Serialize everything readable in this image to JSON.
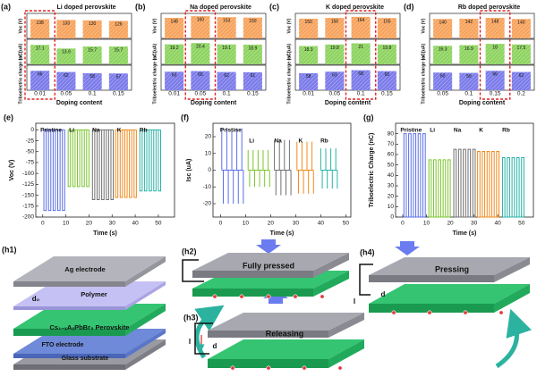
{
  "chart_data": [
    {
      "type": "bar-stack3",
      "label": "(a)",
      "title": "Li doped perovskite",
      "xlabel": "Doping content",
      "categories": [
        "0.01",
        "0.05",
        "0.1",
        "0.15"
      ],
      "highlight": 0,
      "series": [
        {
          "name": "Voc (V)",
          "color": "#f7a35c",
          "values": [
            138,
            133,
            130,
            126
          ],
          "ylim": [
            0,
            180
          ]
        },
        {
          "name": "Isc (uA)",
          "color": "#8dd35f",
          "values": [
            17.1,
            13.9,
            15.7,
            15.7
          ],
          "ylim": [
            0,
            22
          ]
        },
        {
          "name": "Triboelectric charge (nC)",
          "color": "#7b7bea",
          "values": [
            66,
            62,
            58,
            57
          ],
          "ylim": [
            0,
            85
          ]
        }
      ]
    },
    {
      "type": "bar-stack3",
      "label": "(b)",
      "title": "Na doped perovskite",
      "xlabel": "Doping content",
      "categories": [
        "0.01",
        "0.05",
        "0.1",
        "0.15"
      ],
      "highlight": 1,
      "series": [
        {
          "name": "Voc (V)",
          "color": "#f7a35c",
          "values": [
            148,
            160,
            153,
            150
          ],
          "ylim": [
            0,
            180
          ]
        },
        {
          "name": "Isc (uA)",
          "color": "#8dd35f",
          "values": [
            19.2,
            20.4,
            19.1,
            18.9
          ],
          "ylim": [
            0,
            24
          ]
        },
        {
          "name": "Triboelectric charge (nC)",
          "color": "#7b7bea",
          "values": [
            63,
            65,
            62,
            61
          ],
          "ylim": [
            0,
            85
          ]
        }
      ]
    },
    {
      "type": "bar-stack3",
      "label": "(c)",
      "title": "K doped perovskite",
      "xlabel": "Doping content",
      "categories": [
        "0.01",
        "0.05",
        "0.1",
        "0.15"
      ],
      "highlight": 2,
      "series": [
        {
          "name": "Voc (V)",
          "color": "#f7a35c",
          "values": [
            150,
            156,
            164,
            155
          ],
          "ylim": [
            0,
            190
          ]
        },
        {
          "name": "Isc (uA)",
          "color": "#8dd35f",
          "values": [
            18.3,
            19.8,
            21,
            19.8
          ],
          "ylim": [
            0,
            25
          ]
        },
        {
          "name": "Triboelectric charge (nC)",
          "color": "#7b7bea",
          "values": [
            58,
            63,
            68,
            65
          ],
          "ylim": [
            0,
            85
          ]
        }
      ]
    },
    {
      "type": "bar-stack3",
      "label": "(d)",
      "title": "Rb doped perovskite",
      "xlabel": "Doping content",
      "categories": [
        "0.05",
        "0.1",
        "0.15",
        "0.2"
      ],
      "highlight": 2,
      "series": [
        {
          "name": "Voc (V)",
          "color": "#f7a35c",
          "values": [
            140,
            142,
            148,
            140
          ],
          "ylim": [
            0,
            180
          ]
        },
        {
          "name": "Isc (uA)",
          "color": "#8dd35f",
          "values": [
            16.3,
            16.9,
            18,
            17.5
          ],
          "ylim": [
            0,
            22
          ]
        },
        {
          "name": "Triboelectric charge (nC)",
          "color": "#7b7bea",
          "values": [
            60,
            59,
            66,
            62
          ],
          "ylim": [
            0,
            85
          ]
        }
      ]
    },
    {
      "type": "pulse",
      "label": "(e)",
      "xlabel": "Time (s)",
      "ylabel": "Voc (V)",
      "xlim": [
        -3,
        57
      ],
      "ylim": [
        -200,
        15
      ],
      "xticks": [
        0,
        10,
        20,
        30,
        40,
        50
      ],
      "yticks": [
        0,
        -25,
        -50,
        -75,
        -100,
        -125,
        -150,
        -175,
        -200
      ],
      "pulse_width": 1,
      "series": [
        {
          "name": "Pristine",
          "color": "#5a6fe8",
          "x": [
            0.5,
            2.5,
            4.5,
            6.5,
            8.5
          ],
          "values": [
            -185,
            -185,
            -185,
            -185,
            -185
          ]
        },
        {
          "name": "Li",
          "color": "#7cc62e",
          "x": [
            11,
            13,
            15,
            17,
            19
          ],
          "values": [
            -130,
            -130,
            -130,
            -130,
            -130
          ]
        },
        {
          "name": "Na",
          "color": "#707070",
          "x": [
            21.5,
            23.5,
            25.5,
            27.5,
            29.5
          ],
          "values": [
            -160,
            -160,
            -160,
            -160,
            -160
          ]
        },
        {
          "name": "K",
          "color": "#f08a1c",
          "x": [
            31.5,
            33.5,
            35.5,
            37.5,
            39.5
          ],
          "values": [
            -155,
            -155,
            -155,
            -155,
            -155
          ]
        },
        {
          "name": "Rb",
          "color": "#28b3a8",
          "x": [
            42,
            44,
            46,
            48,
            50
          ],
          "values": [
            -140,
            -140,
            -140,
            -140,
            -140
          ]
        }
      ]
    },
    {
      "type": "spike",
      "label": "(f)",
      "xlabel": "Time (s)",
      "ylabel": "Isc (uA)",
      "xlim": [
        -3,
        52
      ],
      "ylim": [
        -28,
        28
      ],
      "xticks": [
        0,
        10,
        20,
        30,
        40,
        50
      ],
      "yticks": [
        -20,
        -10,
        0,
        10,
        20
      ],
      "pulse_width": 0.6,
      "series": [
        {
          "name": "Pristine",
          "color": "#5a6fe8",
          "x": [
            0.5,
            2.5,
            4.5,
            6.5,
            8.5
          ],
          "values": [
            25,
            25,
            25,
            25,
            25
          ],
          "min_values": [
            -20,
            -20,
            -20,
            -20,
            -20
          ]
        },
        {
          "name": "Li",
          "color": "#7cc62e",
          "x": [
            11,
            13,
            15,
            17,
            19
          ],
          "values": [
            12,
            12,
            12,
            12,
            12
          ],
          "min_values": [
            -10,
            -10,
            -10,
            -10,
            -10
          ]
        },
        {
          "name": "Na",
          "color": "#707070",
          "x": [
            21.5,
            23.5,
            25.5,
            27.5
          ],
          "values": [
            18,
            18,
            18,
            18
          ],
          "min_values": [
            -15,
            -15,
            -15,
            -15
          ]
        },
        {
          "name": "K",
          "color": "#f08a1c",
          "x": [
            30.5,
            32.5,
            34.5,
            36.5
          ],
          "values": [
            17,
            17,
            17,
            17
          ],
          "min_values": [
            -14,
            -14,
            -14,
            -14
          ]
        },
        {
          "name": "Rb",
          "color": "#28b3a8",
          "x": [
            40,
            42,
            44,
            46
          ],
          "values": [
            13,
            13,
            13,
            13
          ],
          "min_values": [
            -11,
            -11,
            -11,
            -11
          ]
        }
      ]
    },
    {
      "type": "pulse",
      "label": "(g)",
      "xlabel": "Time (s)",
      "ylabel": "Triboelectric Charge (nC)",
      "xlim": [
        -3,
        55
      ],
      "ylim": [
        0,
        90
      ],
      "xticks": [
        0,
        10,
        20,
        30,
        40,
        50
      ],
      "yticks": [
        0,
        10,
        20,
        30,
        40,
        50,
        60,
        70,
        80
      ],
      "pulse_width": 1,
      "series": [
        {
          "name": "Pristine",
          "color": "#5a6fe8",
          "x": [
            0.5,
            2.5,
            4.5,
            6.5,
            8.5
          ],
          "values": [
            80,
            80,
            80,
            80,
            80
          ]
        },
        {
          "name": "Li",
          "color": "#7cc62e",
          "x": [
            11,
            13,
            15,
            17,
            19
          ],
          "values": [
            55,
            55,
            55,
            55,
            55
          ]
        },
        {
          "name": "Na",
          "color": "#707070",
          "x": [
            21.5,
            23.5,
            25.5,
            27.5,
            29.5
          ],
          "values": [
            65,
            65,
            65,
            65,
            65
          ]
        },
        {
          "name": "K",
          "color": "#f08a1c",
          "x": [
            31.5,
            33.5,
            35.5,
            37.5,
            39.5
          ],
          "values": [
            63,
            63,
            63,
            63,
            63
          ]
        },
        {
          "name": "Rb",
          "color": "#28b3a8",
          "x": [
            42,
            44,
            46,
            48,
            50
          ],
          "values": [
            57,
            57,
            57,
            57,
            57
          ]
        }
      ]
    }
  ],
  "diagram": {
    "h1": {
      "label": "(h1)",
      "top": "Ag electrode",
      "polymer": "Polymer",
      "gap": "d₀",
      "perovskite": "Cs₁₋ₓAₓPbBr₃ Perovskite",
      "fto": "FTO electrode",
      "glass": "Glass substrate"
    },
    "h2": {
      "label": "(h2)",
      "state": "Fully pressed"
    },
    "h3": {
      "label": "(h3)",
      "state": "Releasing",
      "current": "I",
      "gap": "d"
    },
    "h4": {
      "label": "(h4)",
      "state": "Pressing",
      "current": "I",
      "gap": "d"
    }
  }
}
